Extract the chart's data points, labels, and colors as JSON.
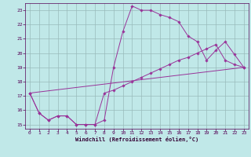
{
  "xlabel": "Windchill (Refroidissement éolien,°C)",
  "bg_color": "#c0e8e8",
  "line_color": "#993399",
  "grid_color": "#99bbbb",
  "xlim": [
    -0.5,
    23.5
  ],
  "ylim": [
    14.7,
    23.5
  ],
  "yticks": [
    15,
    16,
    17,
    18,
    19,
    20,
    21,
    22,
    23
  ],
  "xticks": [
    0,
    1,
    2,
    3,
    4,
    5,
    6,
    7,
    8,
    9,
    10,
    11,
    12,
    13,
    14,
    15,
    16,
    17,
    18,
    19,
    20,
    21,
    22,
    23
  ],
  "line1_x": [
    0,
    1,
    2,
    3,
    4,
    5,
    6,
    7,
    8,
    9,
    10,
    11,
    12,
    13,
    14,
    15,
    16,
    17,
    18,
    19,
    20,
    21,
    22,
    23
  ],
  "line1_y": [
    17.2,
    15.8,
    15.3,
    15.6,
    15.6,
    15.0,
    15.0,
    15.0,
    15.3,
    19.0,
    21.5,
    23.3,
    23.0,
    23.0,
    22.7,
    22.5,
    22.2,
    21.2,
    20.8,
    19.5,
    20.2,
    20.8,
    19.9,
    19.0
  ],
  "line2_x": [
    0,
    1,
    2,
    3,
    4,
    5,
    6,
    7,
    8,
    9,
    10,
    11,
    12,
    13,
    14,
    15,
    16,
    17,
    18,
    19,
    20,
    21,
    22,
    23
  ],
  "line2_y": [
    17.2,
    15.8,
    15.3,
    15.6,
    15.6,
    15.0,
    15.0,
    15.0,
    17.2,
    17.4,
    17.7,
    18.0,
    18.3,
    18.6,
    18.9,
    19.2,
    19.5,
    19.7,
    20.0,
    20.3,
    20.6,
    19.5,
    19.2,
    19.0
  ],
  "line3_x": [
    0,
    23
  ],
  "line3_y": [
    17.2,
    19.0
  ]
}
